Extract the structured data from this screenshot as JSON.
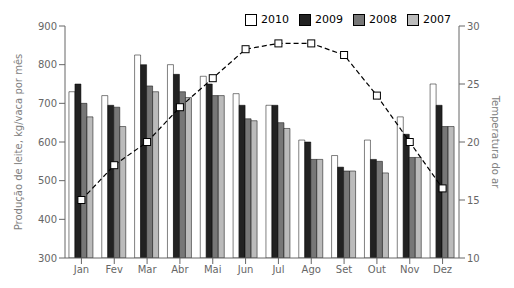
{
  "chart_data": {
    "type": "bar",
    "categories": [
      "Jan",
      "Fev",
      "Mar",
      "Abr",
      "Mai",
      "Jun",
      "Jul",
      "Ago",
      "Set",
      "Out",
      "Nov",
      "Dez"
    ],
    "series": [
      {
        "name": "2010",
        "color": "#ffffff",
        "values": [
          730,
          720,
          825,
          800,
          770,
          725,
          695,
          605,
          565,
          605,
          665,
          750
        ]
      },
      {
        "name": "2009",
        "color": "#222222",
        "values": [
          750,
          695,
          800,
          775,
          750,
          695,
          695,
          600,
          535,
          555,
          620,
          695
        ]
      },
      {
        "name": "2008",
        "color": "#777777",
        "values": [
          700,
          690,
          745,
          730,
          720,
          660,
          650,
          555,
          525,
          550,
          560,
          640
        ]
      },
      {
        "name": "2007",
        "color": "#bbbbbb",
        "values": [
          665,
          640,
          730,
          715,
          720,
          655,
          635,
          555,
          525,
          520,
          560,
          640
        ]
      },
      {
        "type": "line",
        "color": "#000000",
        "marker": "square",
        "line_style": "dashed",
        "axis": "y2",
        "values": [
          15.0,
          18.0,
          20.0,
          23.0,
          25.5,
          28.0,
          28.5,
          28.5,
          27.5,
          24.0,
          20.0,
          16.0
        ]
      }
    ],
    "y_label": "Produção de leite, kg/vaca por mês",
    "y2_label": "Temperatura do ar",
    "ylim": [
      300,
      900
    ],
    "yticks": [
      300,
      400,
      500,
      600,
      700,
      800,
      900
    ],
    "y2lim": [
      10,
      30
    ],
    "y2ticks": [
      10,
      15,
      20,
      25,
      30
    ],
    "legend": "upper right",
    "grid": false
  }
}
